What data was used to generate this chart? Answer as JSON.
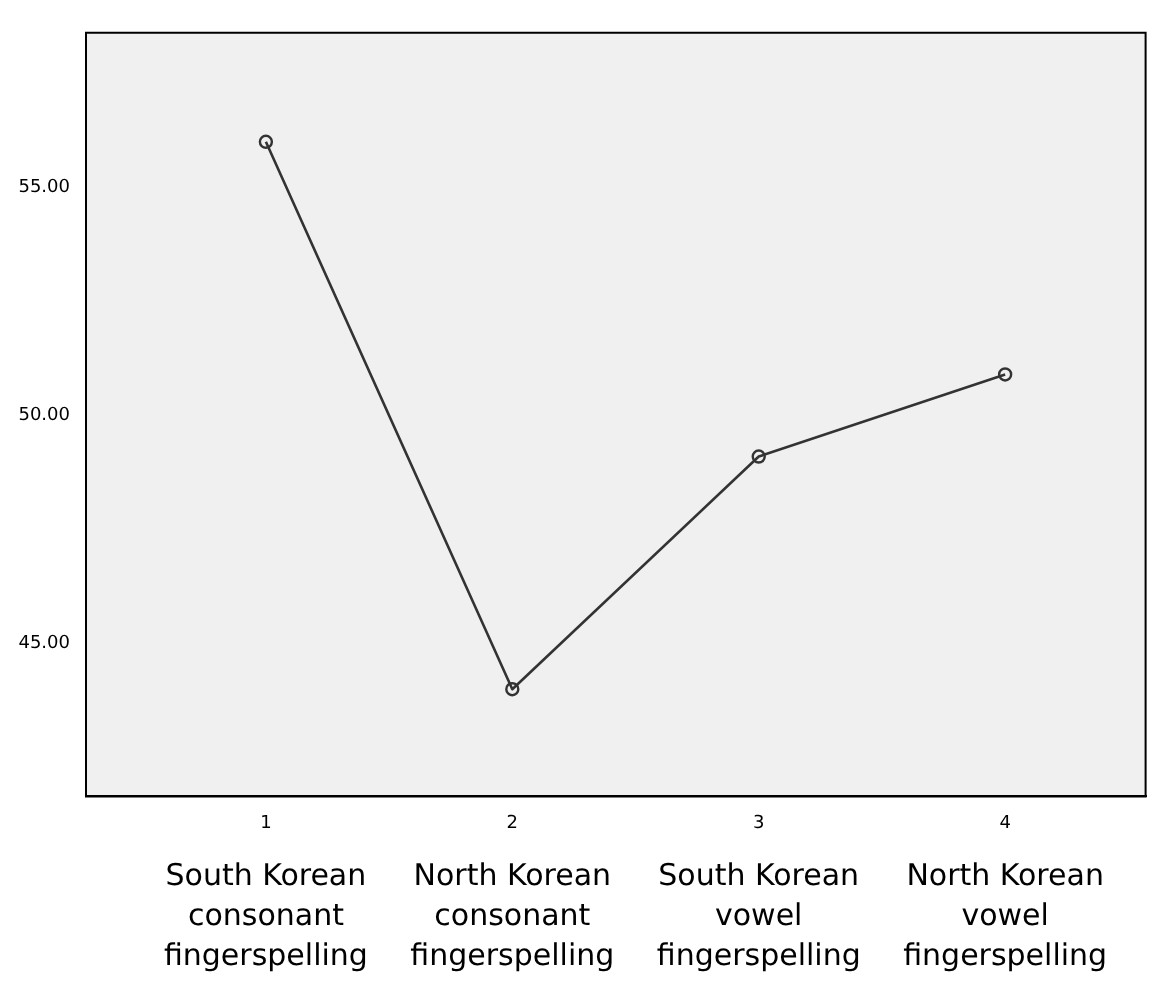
{
  "chart_data": {
    "type": "line",
    "x": [
      1,
      2,
      3,
      4
    ],
    "values": [
      56.0,
      44.0,
      49.1,
      50.9
    ],
    "color": "#333333",
    "marker": "circle",
    "line_style": "solid",
    "grid": false,
    "legend": false,
    "xlim": [
      0.27,
      4.57
    ],
    "xticks": [
      1,
      2,
      3,
      4
    ],
    "ylim": [
      41.65,
      58.39
    ],
    "yticks": [
      {
        "value": 45,
        "label": "45.00"
      },
      {
        "value": 50,
        "label": "50.00"
      },
      {
        "value": 55,
        "label": "55.00"
      }
    ],
    "annotations": [
      "South Korean consonant fingerspelling",
      "North Korean consonant fingerspelling",
      "South Korean vowel fingerspelling",
      "North Korean vowel fingerspelling"
    ]
  }
}
